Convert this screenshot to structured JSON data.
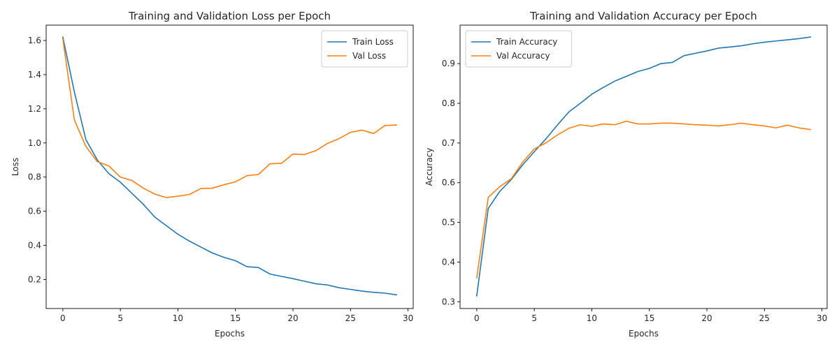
{
  "chart_data": [
    {
      "type": "line",
      "title": "Training and Validation Loss per Epoch",
      "xlabel": "Epochs",
      "ylabel": "Loss",
      "xlim": [
        -1.45,
        30.45
      ],
      "ylim": [
        0.03,
        1.69
      ],
      "xticks": [
        0,
        5,
        10,
        15,
        20,
        25,
        30
      ],
      "yticks": [
        0.2,
        0.4,
        0.6,
        0.8,
        1.0,
        1.2,
        1.4,
        1.6
      ],
      "ytick_decimals": 1,
      "grid": false,
      "legend_position": "top-right",
      "x": [
        0,
        1,
        2,
        3,
        4,
        5,
        6,
        7,
        8,
        9,
        10,
        11,
        12,
        13,
        14,
        15,
        16,
        17,
        18,
        19,
        20,
        21,
        22,
        23,
        24,
        25,
        26,
        27,
        28,
        29
      ],
      "series": [
        {
          "name": "Train Loss",
          "color": "#1f77b4",
          "values": [
            1.62,
            1.3,
            1.02,
            0.9,
            0.82,
            0.77,
            0.705,
            0.64,
            0.565,
            0.515,
            0.465,
            0.425,
            0.39,
            0.355,
            0.33,
            0.31,
            0.275,
            0.27,
            0.232,
            0.218,
            0.205,
            0.19,
            0.175,
            0.168,
            0.152,
            0.142,
            0.132,
            0.125,
            0.12,
            0.11
          ]
        },
        {
          "name": "Val Loss",
          "color": "#ff7f0e",
          "values": [
            1.61,
            1.135,
            0.98,
            0.89,
            0.865,
            0.8,
            0.78,
            0.735,
            0.7,
            0.68,
            0.688,
            0.698,
            0.733,
            0.735,
            0.755,
            0.772,
            0.808,
            0.815,
            0.878,
            0.88,
            0.935,
            0.932,
            0.955,
            0.997,
            1.025,
            1.062,
            1.075,
            1.055,
            1.102,
            1.105
          ]
        }
      ]
    },
    {
      "type": "line",
      "title": "Training and Validation Accuracy per Epoch",
      "xlabel": "Epochs",
      "ylabel": "Accuracy",
      "xlim": [
        -1.45,
        30.45
      ],
      "ylim": [
        0.283,
        0.997
      ],
      "xticks": [
        0,
        5,
        10,
        15,
        20,
        25,
        30
      ],
      "yticks": [
        0.3,
        0.4,
        0.5,
        0.6,
        0.7,
        0.8,
        0.9
      ],
      "ytick_decimals": 1,
      "grid": false,
      "legend_position": "top-left",
      "x": [
        0,
        1,
        2,
        3,
        4,
        5,
        6,
        7,
        8,
        9,
        10,
        11,
        12,
        13,
        14,
        15,
        16,
        17,
        18,
        19,
        20,
        21,
        22,
        23,
        24,
        25,
        26,
        27,
        28,
        29
      ],
      "series": [
        {
          "name": "Train Accuracy",
          "color": "#1f77b4",
          "values": [
            0.315,
            0.535,
            0.578,
            0.608,
            0.645,
            0.678,
            0.71,
            0.745,
            0.778,
            0.8,
            0.823,
            0.84,
            0.856,
            0.868,
            0.88,
            0.888,
            0.9,
            0.903,
            0.92,
            0.926,
            0.932,
            0.939,
            0.942,
            0.945,
            0.95,
            0.954,
            0.957,
            0.96,
            0.963,
            0.967
          ]
        },
        {
          "name": "Val Accuracy",
          "color": "#ff7f0e",
          "values": [
            0.36,
            0.563,
            0.59,
            0.61,
            0.652,
            0.685,
            0.7,
            0.72,
            0.737,
            0.746,
            0.742,
            0.748,
            0.746,
            0.755,
            0.748,
            0.748,
            0.75,
            0.75,
            0.748,
            0.746,
            0.745,
            0.743,
            0.746,
            0.75,
            0.746,
            0.743,
            0.738,
            0.745,
            0.738,
            0.734
          ]
        }
      ]
    }
  ]
}
